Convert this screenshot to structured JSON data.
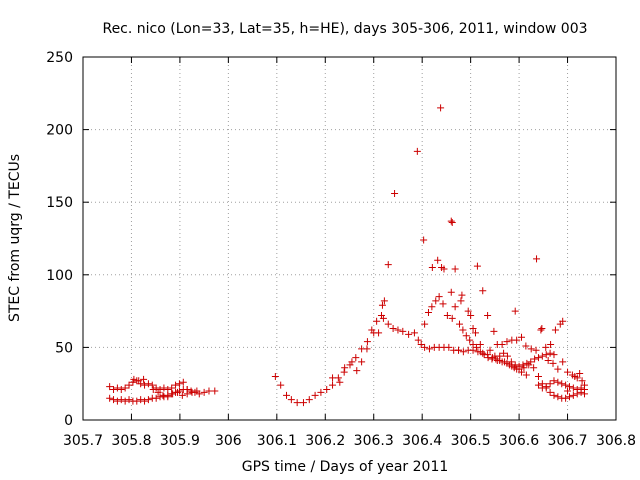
{
  "chart_data": {
    "type": "scatter",
    "title": "Rec. nico (Lon=33, Lat=35, h=HE), days 305-306, 2011, window 003",
    "xlabel": "GPS time / Days of year 2011",
    "ylabel": "STEC from uqrg / TECUs",
    "xlim": [
      305.7,
      306.8
    ],
    "ylim": [
      0,
      250
    ],
    "x_ticks": [
      "305.7",
      "305.8",
      "305.9",
      "306",
      "306.1",
      "306.2",
      "306.3",
      "306.4",
      "306.5",
      "306.6",
      "306.7",
      "306.8"
    ],
    "y_ticks": [
      "0",
      "50",
      "100",
      "150",
      "200",
      "250"
    ],
    "grid": true,
    "marker": "plus",
    "color": "#cc0000",
    "series": [
      {
        "points": [
          [
            305.755,
            23
          ],
          [
            305.763,
            21
          ],
          [
            305.771,
            22
          ],
          [
            305.779,
            21
          ],
          [
            305.787,
            22
          ],
          [
            305.795,
            24
          ],
          [
            305.803,
            26
          ],
          [
            305.811,
            27
          ],
          [
            305.819,
            25
          ],
          [
            305.827,
            24
          ],
          [
            305.835,
            25
          ],
          [
            305.843,
            24
          ],
          [
            305.851,
            22
          ],
          [
            305.859,
            21
          ],
          [
            305.867,
            22
          ],
          [
            305.875,
            21
          ],
          [
            305.883,
            22
          ],
          [
            305.891,
            24
          ],
          [
            305.899,
            25
          ],
          [
            305.907,
            26
          ],
          [
            305.915,
            21
          ],
          [
            305.923,
            20
          ],
          [
            305.931,
            19
          ],
          [
            305.94,
            18
          ],
          [
            305.95,
            19
          ],
          [
            305.96,
            20
          ],
          [
            305.972,
            20
          ],
          [
            305.755,
            15
          ],
          [
            305.763,
            14
          ],
          [
            305.771,
            13
          ],
          [
            305.779,
            14
          ],
          [
            305.787,
            13
          ],
          [
            305.795,
            14
          ],
          [
            305.803,
            13
          ],
          [
            305.811,
            13
          ],
          [
            305.819,
            14
          ],
          [
            305.827,
            13
          ],
          [
            305.835,
            14
          ],
          [
            305.843,
            15
          ],
          [
            305.851,
            15
          ],
          [
            305.859,
            16
          ],
          [
            305.867,
            16
          ],
          [
            305.875,
            17
          ],
          [
            305.883,
            18
          ],
          [
            305.891,
            19
          ],
          [
            305.899,
            20
          ],
          [
            305.907,
            21
          ],
          [
            305.915,
            21
          ],
          [
            305.805,
            28
          ],
          [
            305.815,
            27
          ],
          [
            305.825,
            28
          ],
          [
            305.845,
            21
          ],
          [
            305.855,
            19
          ],
          [
            305.865,
            17
          ],
          [
            305.875,
            16
          ],
          [
            305.885,
            18
          ],
          [
            305.895,
            19
          ],
          [
            305.905,
            17
          ],
          [
            305.915,
            18
          ],
          [
            305.925,
            19
          ],
          [
            305.935,
            20
          ],
          [
            306.097,
            30
          ],
          [
            306.108,
            24
          ],
          [
            306.12,
            17
          ],
          [
            306.13,
            14
          ],
          [
            306.142,
            12
          ],
          [
            306.155,
            12
          ],
          [
            306.167,
            14
          ],
          [
            306.179,
            17
          ],
          [
            306.191,
            19
          ],
          [
            306.203,
            21
          ],
          [
            306.215,
            24
          ],
          [
            306.227,
            29
          ],
          [
            306.239,
            33
          ],
          [
            306.251,
            38
          ],
          [
            306.263,
            43
          ],
          [
            306.275,
            49
          ],
          [
            306.287,
            54
          ],
          [
            306.296,
            62
          ],
          [
            306.306,
            68
          ],
          [
            306.316,
            72
          ],
          [
            306.215,
            29
          ],
          [
            306.23,
            26
          ],
          [
            306.24,
            36
          ],
          [
            306.255,
            40
          ],
          [
            306.265,
            34
          ],
          [
            306.275,
            40
          ],
          [
            306.286,
            49
          ],
          [
            306.3,
            60
          ],
          [
            306.31,
            60
          ],
          [
            306.318,
            79
          ],
          [
            306.322,
            82
          ],
          [
            306.33,
            107
          ],
          [
            306.343,
            156
          ],
          [
            306.39,
            185
          ],
          [
            306.403,
            124
          ],
          [
            306.421,
            105
          ],
          [
            306.432,
            110
          ],
          [
            306.438,
            215
          ],
          [
            306.46,
            137
          ],
          [
            306.462,
            136
          ],
          [
            306.468,
            104
          ],
          [
            306.514,
            106
          ],
          [
            306.525,
            89
          ],
          [
            306.592,
            75
          ],
          [
            306.636,
            111
          ],
          [
            306.32,
            70
          ],
          [
            306.33,
            66
          ],
          [
            306.34,
            63
          ],
          [
            306.35,
            62
          ],
          [
            306.36,
            61
          ],
          [
            306.372,
            59
          ],
          [
            306.384,
            60
          ],
          [
            306.392,
            55
          ],
          [
            306.398,
            52
          ],
          [
            306.405,
            50
          ],
          [
            306.415,
            49
          ],
          [
            306.425,
            50
          ],
          [
            306.435,
            50
          ],
          [
            306.445,
            50
          ],
          [
            306.455,
            50
          ],
          [
            306.465,
            48
          ],
          [
            306.475,
            48
          ],
          [
            306.485,
            47
          ],
          [
            306.495,
            48
          ],
          [
            306.505,
            48
          ],
          [
            306.515,
            47
          ],
          [
            306.525,
            46
          ],
          [
            306.535,
            45
          ],
          [
            306.545,
            43
          ],
          [
            306.555,
            41
          ],
          [
            306.565,
            40
          ],
          [
            306.575,
            39
          ],
          [
            306.585,
            37
          ],
          [
            306.595,
            35
          ],
          [
            306.605,
            33
          ],
          [
            306.615,
            31
          ],
          [
            306.405,
            66
          ],
          [
            306.413,
            74
          ],
          [
            306.42,
            78
          ],
          [
            306.428,
            82
          ],
          [
            306.435,
            85
          ],
          [
            306.443,
            80
          ],
          [
            306.452,
            72
          ],
          [
            306.46,
            88
          ],
          [
            306.468,
            78
          ],
          [
            306.477,
            66
          ],
          [
            306.484,
            62
          ],
          [
            306.491,
            58
          ],
          [
            306.498,
            55
          ],
          [
            306.505,
            52
          ],
          [
            306.512,
            50
          ],
          [
            306.52,
            47
          ],
          [
            306.528,
            45
          ],
          [
            306.536,
            43
          ],
          [
            306.544,
            42
          ],
          [
            306.552,
            42
          ],
          [
            306.56,
            44
          ],
          [
            306.568,
            46
          ],
          [
            306.576,
            44
          ],
          [
            306.584,
            40
          ],
          [
            306.592,
            38
          ],
          [
            306.6,
            37
          ],
          [
            306.608,
            38
          ],
          [
            306.616,
            39
          ],
          [
            306.624,
            40
          ],
          [
            306.632,
            42
          ],
          [
            306.64,
            43
          ],
          [
            306.648,
            44
          ],
          [
            306.656,
            45
          ],
          [
            306.664,
            46
          ],
          [
            306.672,
            45
          ],
          [
            306.44,
            105
          ],
          [
            306.445,
            104
          ],
          [
            306.462,
            70
          ],
          [
            306.475,
            48
          ],
          [
            306.48,
            82
          ],
          [
            306.482,
            86
          ],
          [
            306.495,
            75
          ],
          [
            306.5,
            72
          ],
          [
            306.505,
            63
          ],
          [
            306.51,
            60
          ],
          [
            306.52,
            52
          ],
          [
            306.535,
            72
          ],
          [
            306.548,
            61
          ],
          [
            306.555,
            52
          ],
          [
            306.565,
            52
          ],
          [
            306.575,
            54
          ],
          [
            306.585,
            55
          ],
          [
            306.595,
            55
          ],
          [
            306.605,
            57
          ],
          [
            306.614,
            51
          ],
          [
            306.625,
            49
          ],
          [
            306.635,
            48
          ],
          [
            306.645,
            62
          ],
          [
            306.647,
            63
          ],
          [
            306.655,
            50
          ],
          [
            306.665,
            52
          ],
          [
            306.675,
            62
          ],
          [
            306.685,
            66
          ],
          [
            306.69,
            68
          ],
          [
            306.54,
            48
          ],
          [
            306.55,
            44
          ],
          [
            306.56,
            41
          ],
          [
            306.57,
            40
          ],
          [
            306.58,
            38
          ],
          [
            306.59,
            36
          ],
          [
            306.6,
            35
          ],
          [
            306.61,
            36
          ],
          [
            306.62,
            38
          ],
          [
            306.63,
            36
          ],
          [
            306.64,
            30
          ],
          [
            306.648,
            25
          ],
          [
            306.656,
            22
          ],
          [
            306.664,
            19
          ],
          [
            306.672,
            17
          ],
          [
            306.68,
            16
          ],
          [
            306.688,
            15
          ],
          [
            306.696,
            15
          ],
          [
            306.704,
            16
          ],
          [
            306.712,
            17
          ],
          [
            306.72,
            18
          ],
          [
            306.728,
            19
          ],
          [
            306.735,
            21
          ],
          [
            306.64,
            24
          ],
          [
            306.648,
            22
          ],
          [
            306.656,
            23
          ],
          [
            306.664,
            25
          ],
          [
            306.672,
            27
          ],
          [
            306.68,
            26
          ],
          [
            306.688,
            25
          ],
          [
            306.696,
            24
          ],
          [
            306.704,
            23
          ],
          [
            306.712,
            22
          ],
          [
            306.72,
            21
          ],
          [
            306.728,
            22
          ],
          [
            306.735,
            24
          ],
          [
            306.69,
            40
          ],
          [
            306.7,
            33
          ],
          [
            306.71,
            31
          ],
          [
            306.72,
            29
          ],
          [
            306.73,
            27
          ],
          [
            306.68,
            35
          ],
          [
            306.67,
            39
          ],
          [
            306.66,
            41
          ],
          [
            306.7,
            20
          ],
          [
            306.715,
            30
          ],
          [
            306.725,
            32
          ],
          [
            306.735,
            18
          ]
        ]
      }
    ]
  }
}
